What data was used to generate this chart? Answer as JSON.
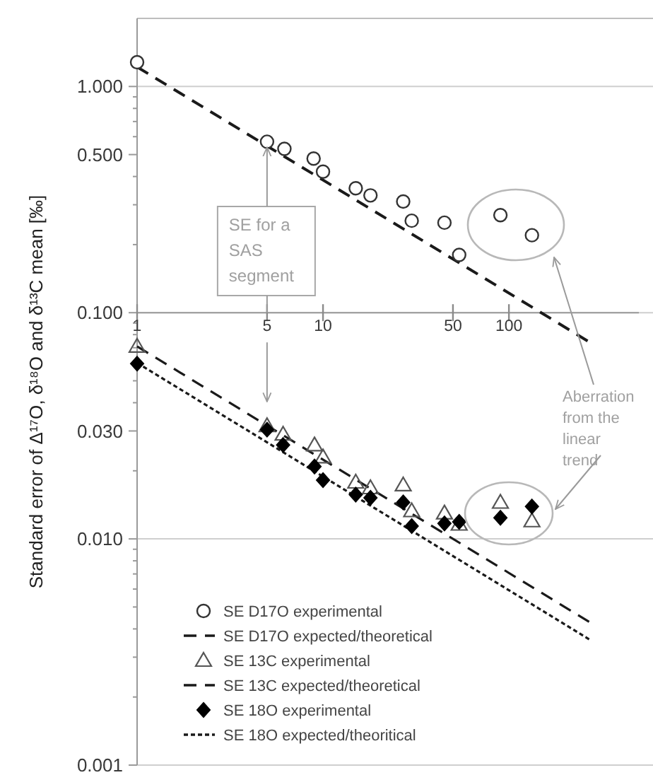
{
  "chart_data": {
    "type": "scatter",
    "ylabel": "Standard error of  Δ¹⁷O,  δ¹⁸O and  δ¹³C mean [‰]",
    "log": "xy",
    "grid": "y",
    "legend": "bottom left",
    "xlim": [
      1,
      500
    ],
    "xticks": [
      1,
      5,
      10,
      50,
      100
    ],
    "ylim": [
      0.001,
      2
    ],
    "yticks": [
      {
        "value": 0.001,
        "label": "0.001"
      },
      {
        "value": 0.002,
        "label": null
      },
      {
        "value": 0.003,
        "label": null
      },
      {
        "value": 0.004,
        "label": null
      },
      {
        "value": 0.005,
        "label": null
      },
      {
        "value": 0.006,
        "label": null
      },
      {
        "value": 0.007,
        "label": null
      },
      {
        "value": 0.008,
        "label": null
      },
      {
        "value": 0.009,
        "label": null
      },
      {
        "value": 0.01,
        "label": "0.010"
      },
      {
        "value": 0.02,
        "label": null
      },
      {
        "value": 0.03,
        "label": "0.030"
      },
      {
        "value": 0.04,
        "label": null
      },
      {
        "value": 0.05,
        "label": null
      },
      {
        "value": 0.06,
        "label": null
      },
      {
        "value": 0.07,
        "label": null
      },
      {
        "value": 0.08,
        "label": null
      },
      {
        "value": 0.09,
        "label": null
      },
      {
        "value": 0.1,
        "label": "0.100"
      },
      {
        "value": 0.2,
        "label": null
      },
      {
        "value": 0.3,
        "label": null
      },
      {
        "value": 0.4,
        "label": null
      },
      {
        "value": 0.5,
        "label": "0.500"
      },
      {
        "value": 0.6,
        "label": null
      },
      {
        "value": 0.7,
        "label": null
      },
      {
        "value": 0.8,
        "label": null
      },
      {
        "value": 0.9,
        "label": null
      },
      {
        "value": 1,
        "label": "1.000"
      }
    ],
    "annotations": [
      {
        "text": "SE for a SAS segment",
        "x": 5,
        "y": 0.57
      },
      "Aberration from the linear trend"
    ],
    "series": [
      {
        "name": "SE D17O experimental",
        "marker": "circle",
        "color": "#333333",
        "x": [
          1,
          5,
          6.2,
          8.9,
          10,
          15,
          18,
          27,
          30,
          45,
          54,
          90,
          133
        ],
        "values": [
          1.28,
          0.57,
          0.53,
          0.48,
          0.42,
          0.355,
          0.33,
          0.31,
          0.255,
          0.25,
          0.18,
          0.27,
          0.22
        ]
      },
      {
        "name": "SE D17O expected/theoretical",
        "type": "line",
        "marker": "none",
        "line_style": "dashed",
        "color": "#1a1a1a",
        "x": [
          1,
          265
        ],
        "values": [
          1.22,
          0.075
        ]
      },
      {
        "name": "SE 13C experimental",
        "marker": "triangle",
        "color": "#555555",
        "x": [
          1,
          5,
          6.1,
          9,
          10,
          15,
          18,
          27,
          30,
          45,
          54,
          90,
          133
        ],
        "values": [
          0.071,
          0.0316,
          0.029,
          0.026,
          0.023,
          0.0178,
          0.0168,
          0.0173,
          0.0133,
          0.013,
          0.0116,
          0.0145,
          0.012
        ]
      },
      {
        "name": "SE 13C expected/theoretical",
        "type": "line",
        "marker": "none",
        "line_style": "dashed",
        "color": "#1a1a1a",
        "x": [
          1,
          270
        ],
        "values": [
          0.071,
          0.0043
        ]
      },
      {
        "name": "SE 18O experimental",
        "marker": "diamond",
        "color": "#000000",
        "x": [
          1,
          5,
          6.1,
          9,
          10,
          15,
          18,
          27,
          30,
          45,
          54,
          90,
          133
        ],
        "values": [
          0.0595,
          0.0304,
          0.026,
          0.0209,
          0.0182,
          0.0157,
          0.0152,
          0.0145,
          0.0114,
          0.0117,
          0.0119,
          0.0124,
          0.0139
        ]
      },
      {
        "name": "SE 18O expected/theoritical",
        "type": "line",
        "marker": "none",
        "line_style": "dotted",
        "color": "#1a1a1a",
        "x": [
          1,
          270
        ],
        "values": [
          0.06,
          0.0036
        ]
      }
    ]
  }
}
